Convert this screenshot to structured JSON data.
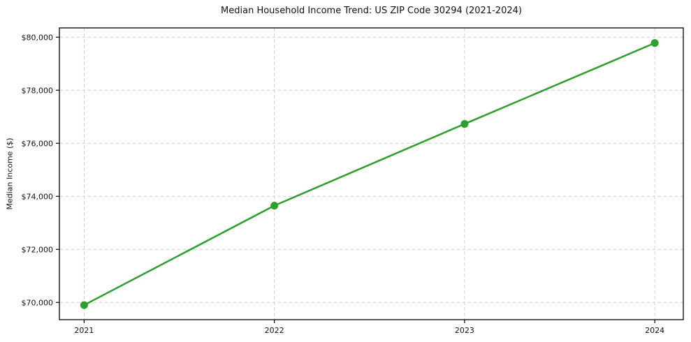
{
  "chart_data": {
    "type": "line",
    "title": "Median Household Income Trend: US ZIP Code 30294 (2021-2024)",
    "xlabel": "",
    "ylabel": "Median Income ($)",
    "x": [
      2021,
      2022,
      2023,
      2024
    ],
    "values": [
      69900,
      73650,
      76730,
      79780
    ],
    "xticks": [
      2021,
      2022,
      2023,
      2024
    ],
    "xtick_labels": [
      "2021",
      "2022",
      "2023",
      "2024"
    ],
    "yticks": [
      70000,
      72000,
      74000,
      76000,
      78000,
      80000
    ],
    "ytick_labels": [
      "$70,000",
      "$72,000",
      "$74,000",
      "$76,000",
      "$78,000",
      "$80,000"
    ],
    "xlim": [
      2020.87,
      2024.15
    ],
    "ylim": [
      69350,
      80350
    ],
    "grid": true,
    "grid_style": "dashed",
    "legend": false,
    "line_color": "#2ca02c",
    "marker": "circle",
    "marker_radius": 5.5,
    "line_width": 2.5,
    "grid_color": "#d0d0d0",
    "axis_color": "#000000",
    "text_color": "#111111",
    "background": "#ffffff"
  }
}
